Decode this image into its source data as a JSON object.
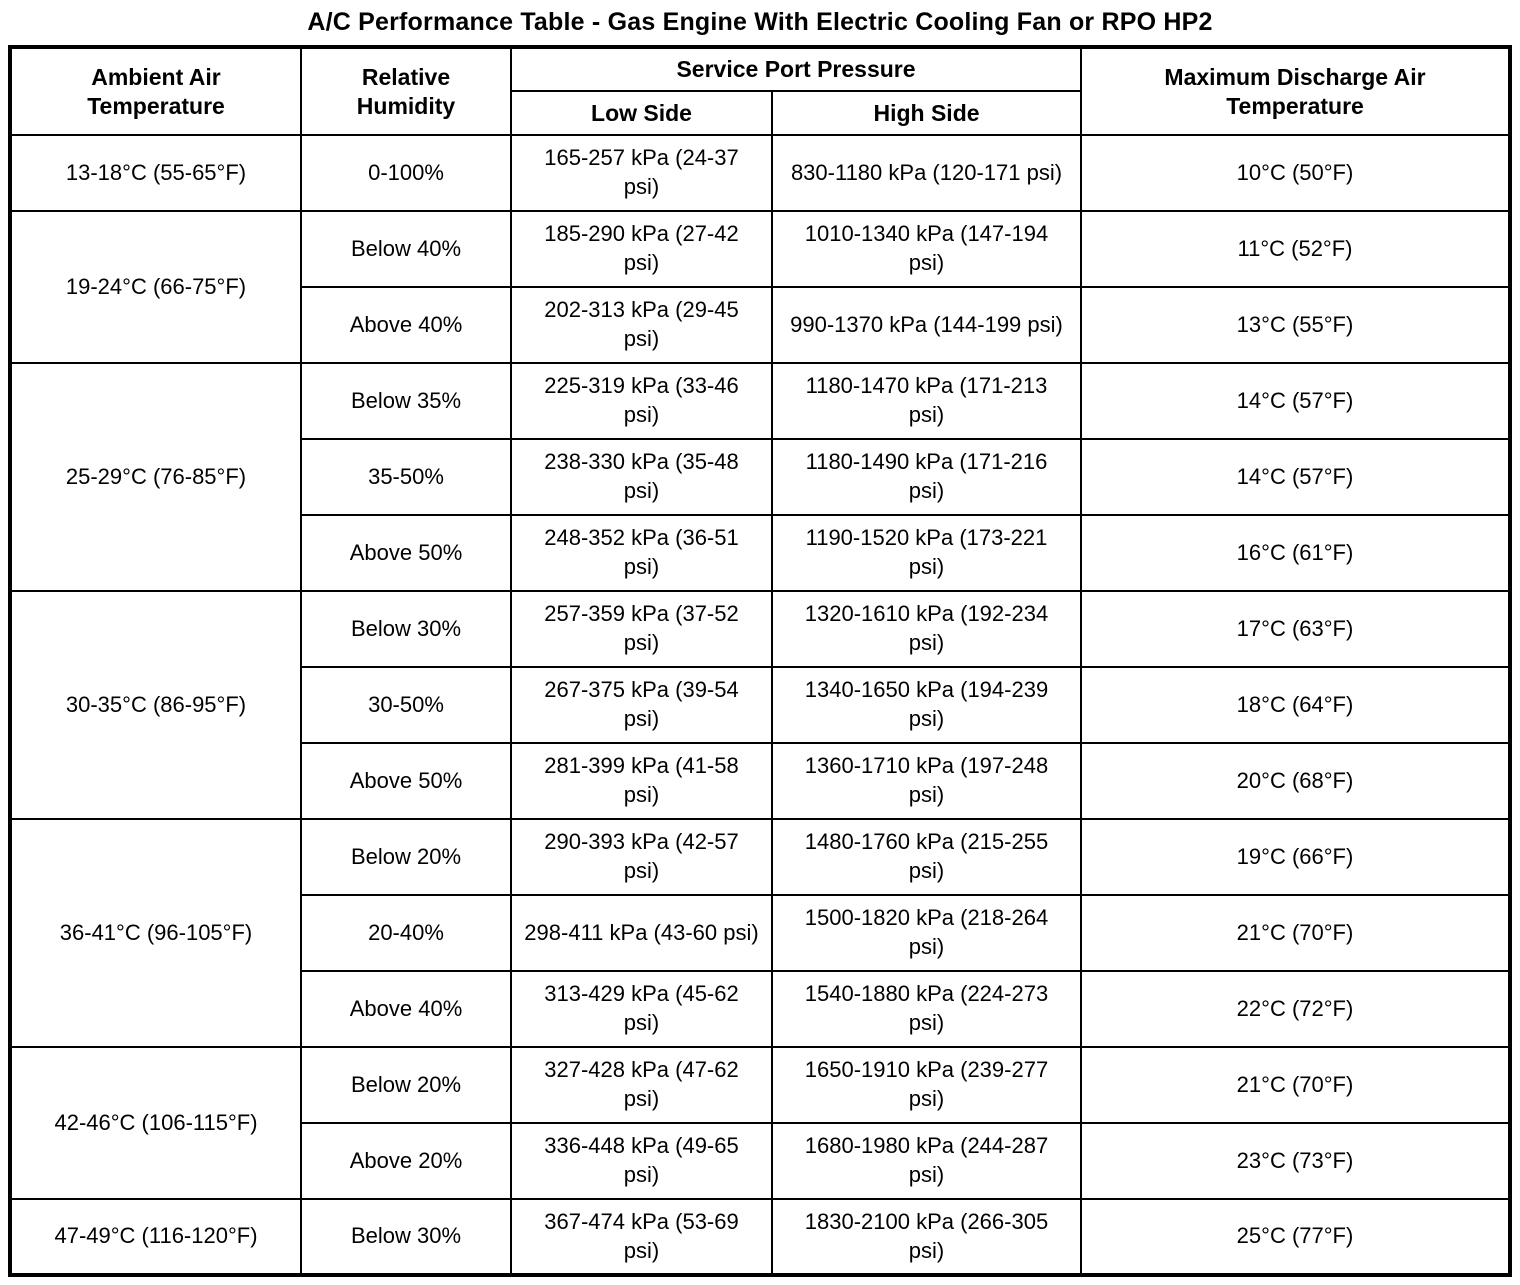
{
  "title": "A/C Performance Table - Gas Engine With Electric Cooling Fan or RPO HP2",
  "table": {
    "headers": {
      "ambient": "Ambient Air Temperature",
      "humidity": "Relative Humidity",
      "service_port_pressure": "Service Port Pressure",
      "low_side": "Low Side",
      "high_side": "High Side",
      "max_discharge": "Maximum Discharge Air Temperature"
    },
    "groups": [
      {
        "ambient": "13-18°C (55-65°F)",
        "rows": [
          {
            "humidity": "0-100%",
            "low": "165-257 kPa (24-37 psi)",
            "high": "830-1180 kPa (120-171 psi)",
            "max": "10°C (50°F)"
          }
        ]
      },
      {
        "ambient": "19-24°C (66-75°F)",
        "rows": [
          {
            "humidity": "Below 40%",
            "low": "185-290 kPa (27-42 psi)",
            "high": "1010-1340 kPa (147-194 psi)",
            "max": "11°C (52°F)"
          },
          {
            "humidity": "Above 40%",
            "low": "202-313 kPa (29-45 psi)",
            "high": "990-1370 kPa (144-199 psi)",
            "max": "13°C (55°F)"
          }
        ]
      },
      {
        "ambient": "25-29°C (76-85°F)",
        "rows": [
          {
            "humidity": "Below 35%",
            "low": "225-319 kPa (33-46 psi)",
            "high": "1180-1470 kPa (171-213 psi)",
            "max": "14°C (57°F)"
          },
          {
            "humidity": "35-50%",
            "low": "238-330 kPa (35-48 psi)",
            "high": "1180-1490 kPa (171-216 psi)",
            "max": "14°C (57°F)"
          },
          {
            "humidity": "Above 50%",
            "low": "248-352 kPa (36-51 psi)",
            "high": "1190-1520 kPa (173-221 psi)",
            "max": "16°C (61°F)"
          }
        ]
      },
      {
        "ambient": "30-35°C (86-95°F)",
        "rows": [
          {
            "humidity": "Below 30%",
            "low": "257-359 kPa (37-52 psi)",
            "high": "1320-1610 kPa (192-234 psi)",
            "max": "17°C (63°F)"
          },
          {
            "humidity": "30-50%",
            "low": "267-375 kPa (39-54 psi)",
            "high": "1340-1650 kPa (194-239 psi)",
            "max": "18°C (64°F)"
          },
          {
            "humidity": "Above 50%",
            "low": "281-399 kPa (41-58 psi)",
            "high": "1360-1710 kPa (197-248 psi)",
            "max": "20°C (68°F)"
          }
        ]
      },
      {
        "ambient": "36-41°C (96-105°F)",
        "rows": [
          {
            "humidity": "Below 20%",
            "low": "290-393 kPa (42-57 psi)",
            "high": "1480-1760 kPa (215-255 psi)",
            "max": "19°C (66°F)"
          },
          {
            "humidity": "20-40%",
            "low": "298-411 kPa (43-60 psi)",
            "high": "1500-1820 kPa (218-264 psi)",
            "max": "21°C (70°F)"
          },
          {
            "humidity": "Above 40%",
            "low": "313-429 kPa (45-62 psi)",
            "high": "1540-1880 kPa (224-273 psi)",
            "max": "22°C (72°F)"
          }
        ]
      },
      {
        "ambient": "42-46°C (106-115°F)",
        "rows": [
          {
            "humidity": "Below 20%",
            "low": "327-428 kPa (47-62 psi)",
            "high": "1650-1910 kPa (239-277 psi)",
            "max": "21°C (70°F)"
          },
          {
            "humidity": "Above 20%",
            "low": "336-448 kPa (49-65 psi)",
            "high": "1680-1980 kPa (244-287 psi)",
            "max": "23°C (73°F)"
          }
        ]
      },
      {
        "ambient": "47-49°C (116-120°F)",
        "rows": [
          {
            "humidity": "Below 30%",
            "low": "367-474 kPa (53-69 psi)",
            "high": "1830-2100 kPa (266-305 psi)",
            "max": "25°C (77°F)"
          }
        ]
      }
    ]
  }
}
